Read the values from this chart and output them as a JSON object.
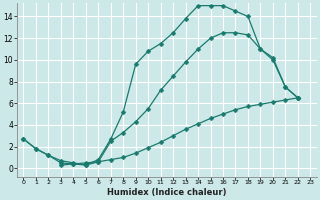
{
  "xlabel": "Humidex (Indice chaleur)",
  "background_color": "#cde8e8",
  "grid_color": "#b0d4d4",
  "line_color": "#1a7a6e",
  "xlim": [
    -0.5,
    23.5
  ],
  "ylim": [
    -0.8,
    15.2
  ],
  "xticks": [
    0,
    1,
    2,
    3,
    4,
    5,
    6,
    7,
    8,
    9,
    10,
    11,
    12,
    13,
    14,
    15,
    16,
    17,
    18,
    19,
    20,
    21,
    22,
    23
  ],
  "yticks": [
    0,
    2,
    4,
    6,
    8,
    10,
    12,
    14
  ],
  "curve1_x": [
    0,
    1,
    2,
    3,
    4,
    5,
    6,
    7,
    8,
    9,
    10,
    11,
    12,
    13,
    14,
    15,
    16,
    17,
    18,
    19,
    20,
    21,
    22
  ],
  "curve1_y": [
    2.7,
    1.8,
    1.2,
    0.7,
    0.5,
    0.3,
    0.8,
    2.7,
    5.2,
    9.6,
    10.8,
    11.5,
    12.5,
    13.8,
    15.0,
    15.0,
    15.0,
    14.5,
    14.0,
    11.0,
    10.2,
    7.5,
    6.5
  ],
  "curve2_x": [
    0,
    1,
    2,
    3,
    4,
    5,
    6,
    7,
    8,
    9,
    10,
    11,
    12,
    13,
    14,
    15,
    16,
    17,
    18,
    19,
    20,
    21,
    22
  ],
  "curve2_y": [
    2.7,
    1.8,
    1.2,
    0.5,
    0.4,
    0.3,
    0.6,
    2.5,
    3.3,
    4.3,
    5.5,
    7.2,
    8.5,
    9.8,
    11.0,
    12.0,
    12.5,
    12.5,
    12.3,
    11.0,
    10.0,
    7.5,
    6.5
  ],
  "curve3_x": [
    3,
    4,
    5,
    6,
    7,
    8,
    9,
    10,
    11,
    12,
    13,
    14,
    15,
    16,
    17,
    18,
    19,
    20,
    21,
    22
  ],
  "curve3_y": [
    0.3,
    0.4,
    0.5,
    0.6,
    0.8,
    1.0,
    1.4,
    1.9,
    2.4,
    3.0,
    3.6,
    4.1,
    4.6,
    5.0,
    5.4,
    5.7,
    5.9,
    6.1,
    6.3,
    6.5
  ]
}
